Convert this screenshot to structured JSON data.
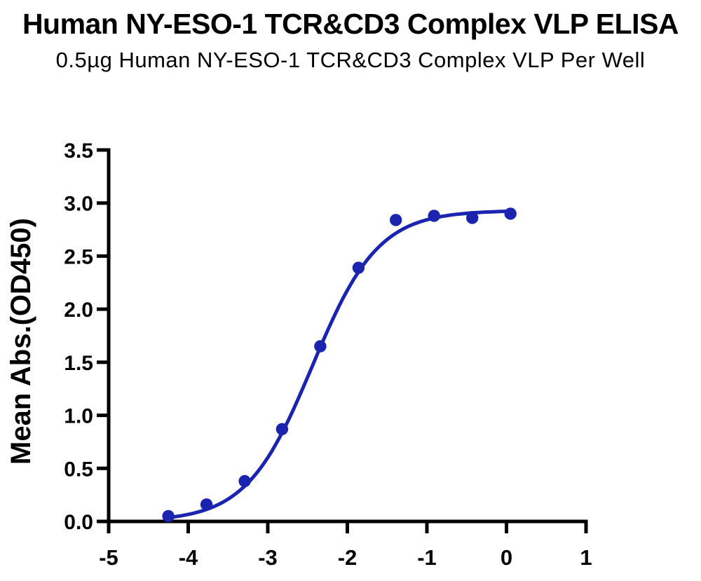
{
  "header": {
    "title": "Human NY-ESO-1 TCR&CD3 Complex VLP ELISA",
    "subtitle": "0.5µg Human NY-ESO-1 TCR&CD3 Complex VLP Per Well"
  },
  "chart_data": {
    "type": "scatter",
    "title": "Human NY-ESO-1 TCR&CD3 Complex VLP ELISA",
    "subtitle": "0.5µg Human NY-ESO-1 TCR&CD3 Complex VLP Per Well",
    "xlabel": "",
    "ylabel": "Mean Abs.(OD450)",
    "xlim": [
      -5,
      1
    ],
    "ylim": [
      0,
      3.5
    ],
    "x_ticks": [
      -5,
      -4,
      -3,
      -2,
      -1,
      0,
      1
    ],
    "x_tick_labels": [
      "-5",
      "-4",
      "-3",
      "-2",
      "-1",
      "0",
      "1"
    ],
    "y_ticks": [
      0,
      0.5,
      1,
      1.5,
      2,
      2.5,
      3,
      3.5
    ],
    "y_tick_labels": [
      "0.0",
      "0.5",
      "1.0",
      "1.5",
      "2.0",
      "2.5",
      "3.0",
      "3.5"
    ],
    "grid": false,
    "legend": false,
    "axis_color": "#000000",
    "background": "#FFFFFF",
    "series": [
      {
        "name": "Mean Abs.(OD450)",
        "marker": "circle",
        "color": "#1B24AE",
        "points": [
          {
            "x": -4.25,
            "y": 0.05
          },
          {
            "x": -3.77,
            "y": 0.16
          },
          {
            "x": -3.29,
            "y": 0.38
          },
          {
            "x": -2.82,
            "y": 0.87
          },
          {
            "x": -2.34,
            "y": 1.65
          },
          {
            "x": -1.86,
            "y": 2.39
          },
          {
            "x": -1.39,
            "y": 2.84
          },
          {
            "x": -0.91,
            "y": 2.88
          },
          {
            "x": -0.43,
            "y": 2.86
          },
          {
            "x": 0.05,
            "y": 2.9
          }
        ]
      }
    ],
    "fit_curve": {
      "model": "4PL",
      "bottom": 0.0,
      "top": 2.93,
      "log_ec50": -2.44,
      "hill_slope": 1.05,
      "x_start": -4.25,
      "x_end": 0.05,
      "color": "#1B24AE"
    }
  }
}
